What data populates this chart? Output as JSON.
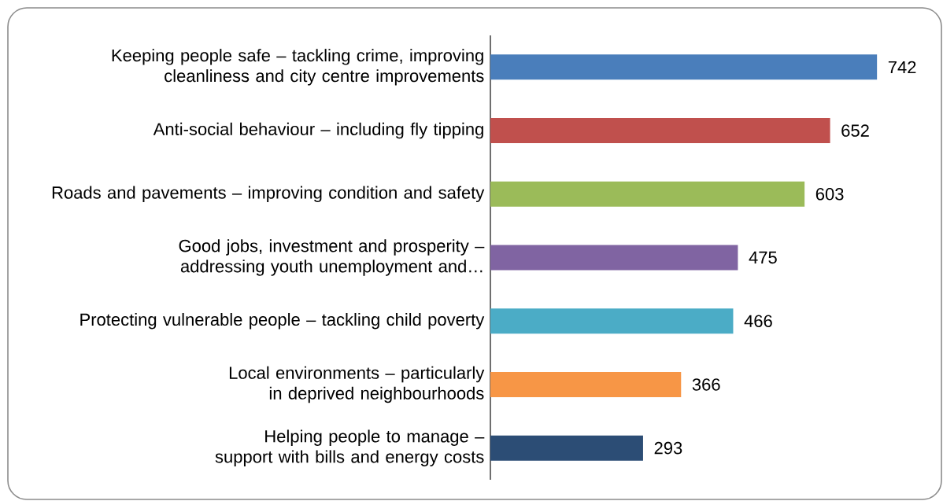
{
  "chart_data": {
    "type": "bar",
    "orientation": "horizontal",
    "categories": [
      "Keeping people safe – tackling crime, improving cleanliness and city centre improvements",
      "Anti-social behaviour – including fly tipping",
      "Roads and pavements – improving condition and safety",
      "Good jobs, investment and prosperity – addressing youth unemployment and…",
      "Protecting vulnerable people – tackling child poverty",
      "Local environments – particularly in deprived neighbourhoods",
      "Helping people to manage – support with bills and energy costs"
    ],
    "values": [
      742,
      652,
      603,
      475,
      466,
      366,
      293
    ],
    "colors": [
      "#4a7ebb",
      "#c0504d",
      "#9bbb59",
      "#8064a2",
      "#4bacc6",
      "#f79646",
      "#2c4d75"
    ],
    "data_labels": true
  }
}
